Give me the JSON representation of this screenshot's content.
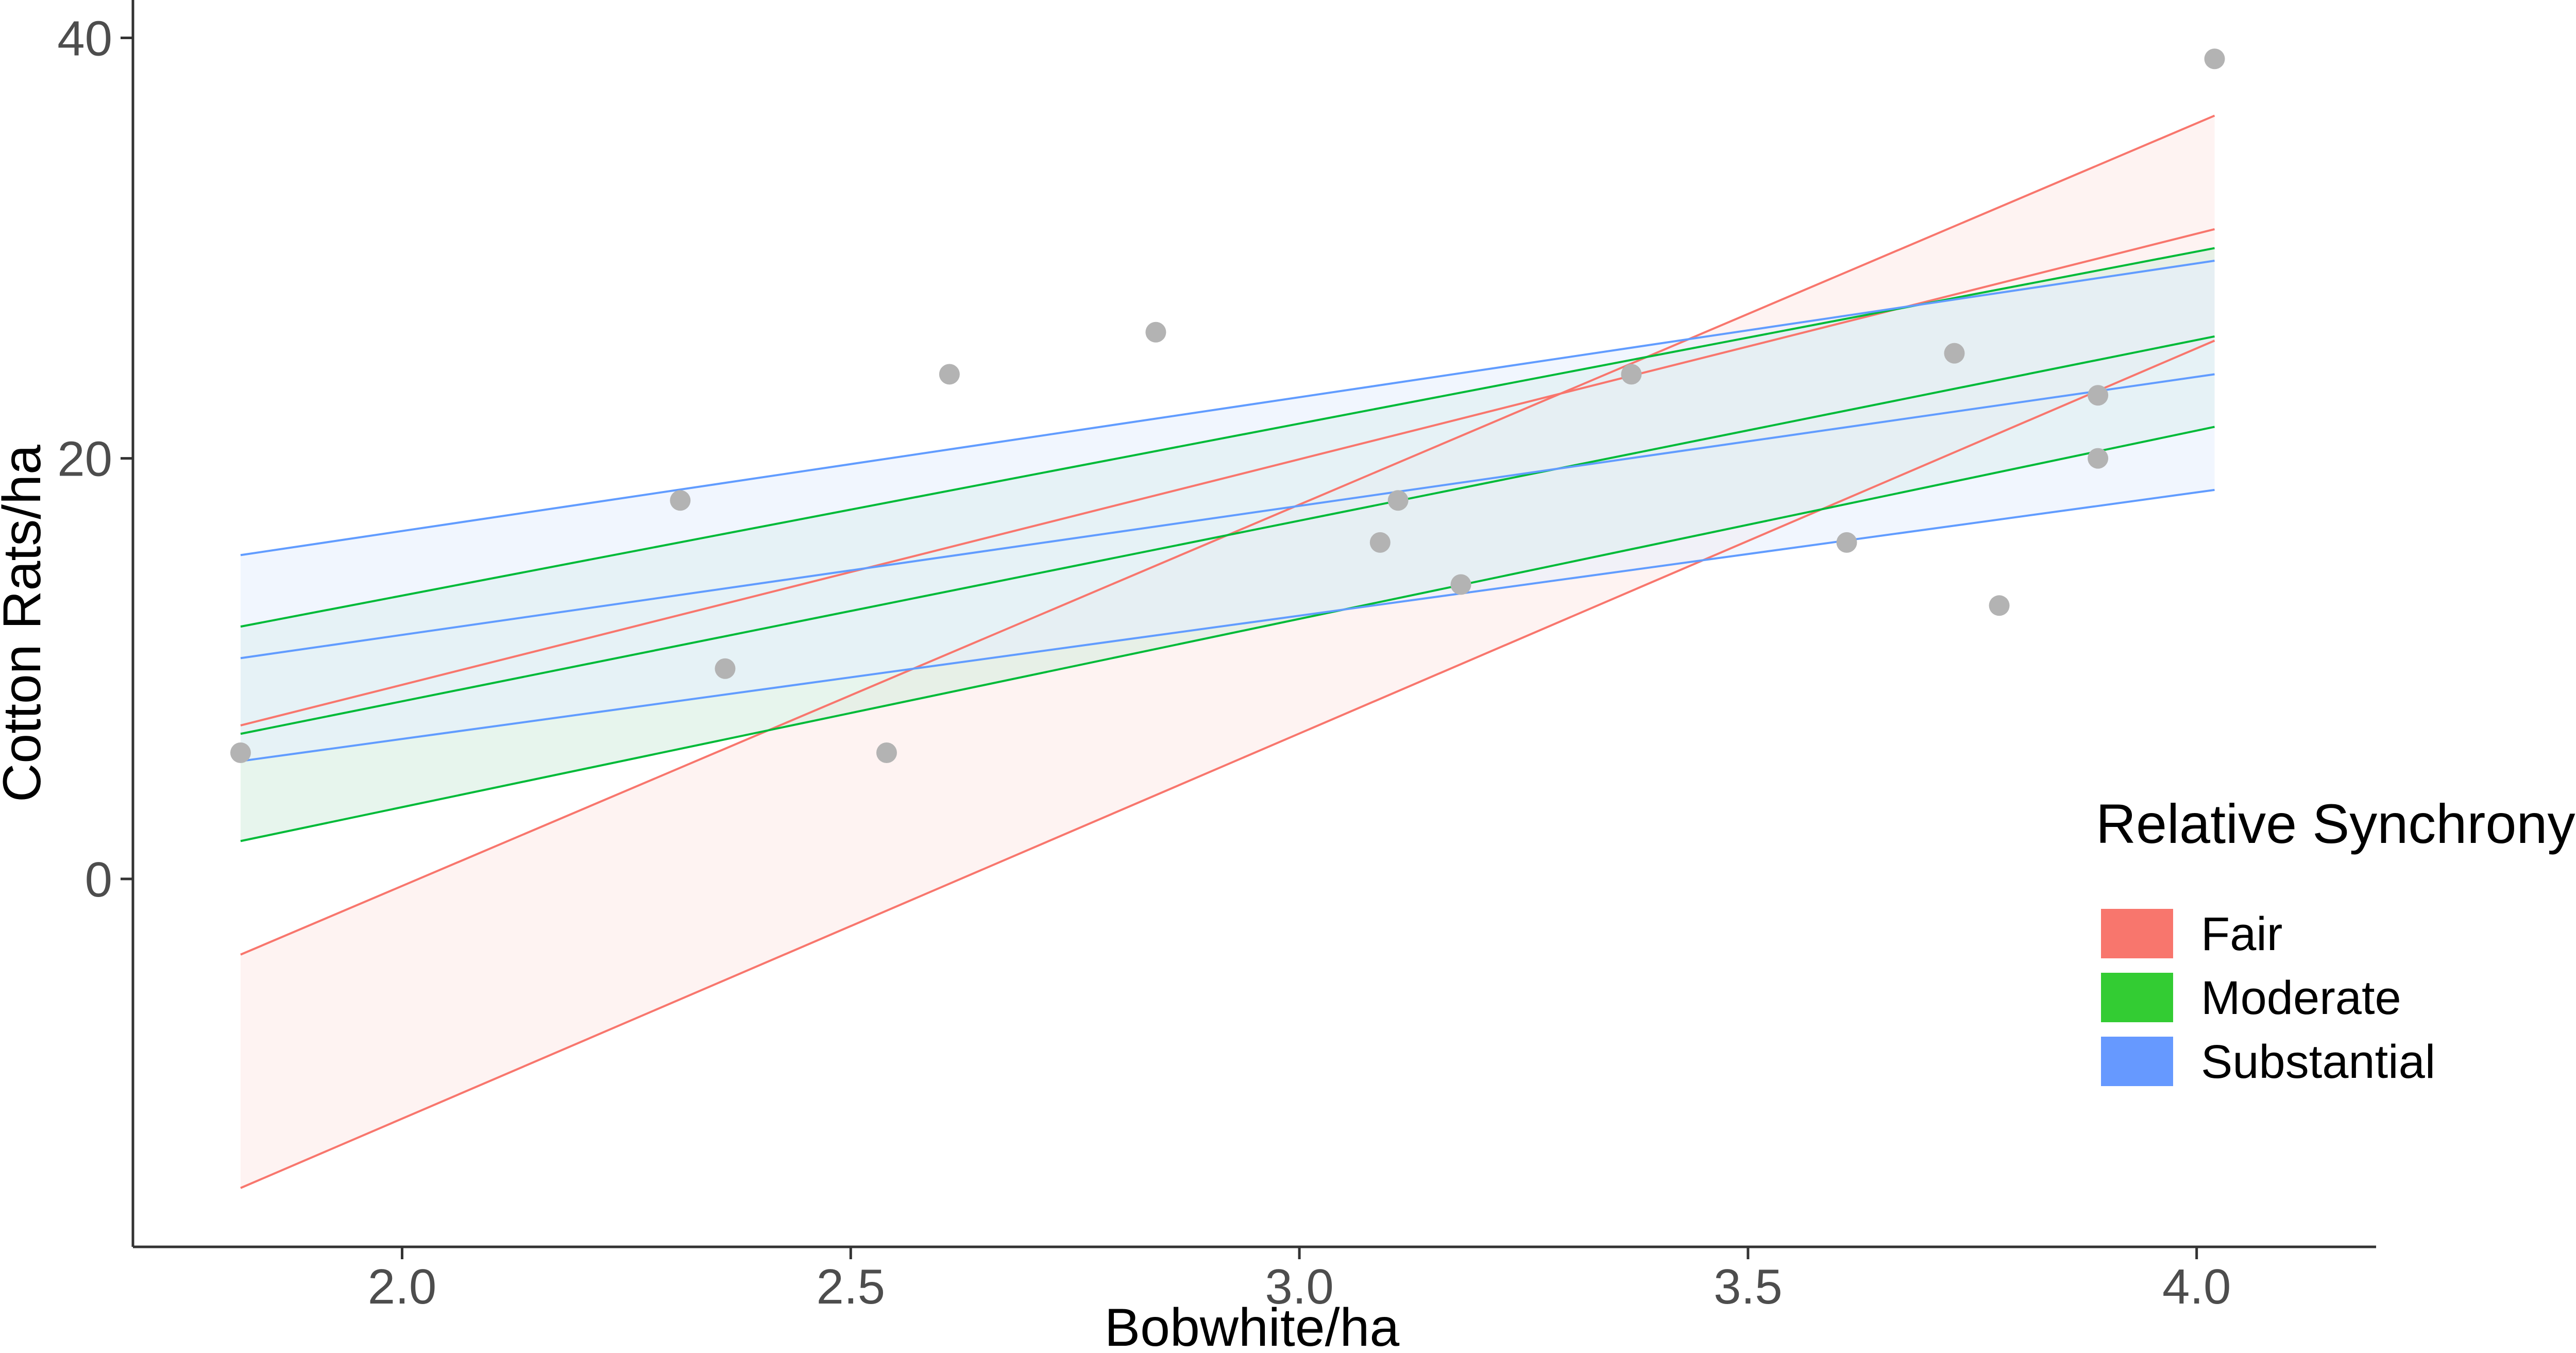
{
  "chart_data": {
    "type": "scatter",
    "xlabel": "Bobwhite/ha",
    "ylabel": "Cotton Rats/ha",
    "xlim": [
      1.7,
      4.2
    ],
    "ylim": [
      -17.5,
      41.8
    ],
    "x_ticks": [
      2.0,
      2.5,
      3.0,
      3.5,
      4.0
    ],
    "x_tick_labels": [
      "2.0",
      "2.5",
      "3.0",
      "3.5",
      "4.0"
    ],
    "y_ticks": [
      0,
      20,
      40
    ],
    "y_tick_labels": [
      "0",
      "20",
      "40"
    ],
    "grid": false,
    "points": [
      {
        "x": 1.82,
        "y": 6
      },
      {
        "x": 2.31,
        "y": 18
      },
      {
        "x": 2.36,
        "y": 10
      },
      {
        "x": 2.54,
        "y": 6
      },
      {
        "x": 2.61,
        "y": 24
      },
      {
        "x": 2.84,
        "y": 26
      },
      {
        "x": 3.09,
        "y": 16
      },
      {
        "x": 3.11,
        "y": 18
      },
      {
        "x": 3.18,
        "y": 14
      },
      {
        "x": 3.37,
        "y": 24
      },
      {
        "x": 3.61,
        "y": 16
      },
      {
        "x": 3.73,
        "y": 25
      },
      {
        "x": 3.78,
        "y": 13
      },
      {
        "x": 3.89,
        "y": 23
      },
      {
        "x": 3.89,
        "y": 20
      },
      {
        "x": 4.02,
        "y": 39
      }
    ],
    "series": [
      {
        "name": "Fair",
        "color": "#f8766d",
        "fill": "#fde9e7",
        "x": [
          1.82,
          4.02
        ],
        "fit": [
          7.3,
          30.9
        ],
        "lower": [
          -14.7,
          25.6
        ],
        "upper": [
          -3.6,
          36.3
        ]
      },
      {
        "name": "Moderate",
        "color": "#00ba38",
        "fill": "#d4ecde",
        "x": [
          1.82,
          4.02
        ],
        "fit": [
          6.9,
          25.8
        ],
        "lower": [
          1.8,
          21.5
        ],
        "upper": [
          12.0,
          30.0
        ]
      },
      {
        "name": "Substantial",
        "color": "#619cff",
        "fill": "#e6effd",
        "x": [
          1.82,
          4.02
        ],
        "fit": [
          10.5,
          24.0
        ],
        "lower": [
          5.6,
          18.5
        ],
        "upper": [
          15.4,
          29.4
        ]
      }
    ],
    "legend": {
      "title": "Relative Synchrony",
      "position": "right",
      "entries": [
        {
          "label": "Fair",
          "color": "#f8766d"
        },
        {
          "label": "Moderate",
          "color": "#33cc33"
        },
        {
          "label": "Substantial",
          "color": "#6699ff"
        }
      ]
    },
    "point_color": "#b3b3b3"
  }
}
